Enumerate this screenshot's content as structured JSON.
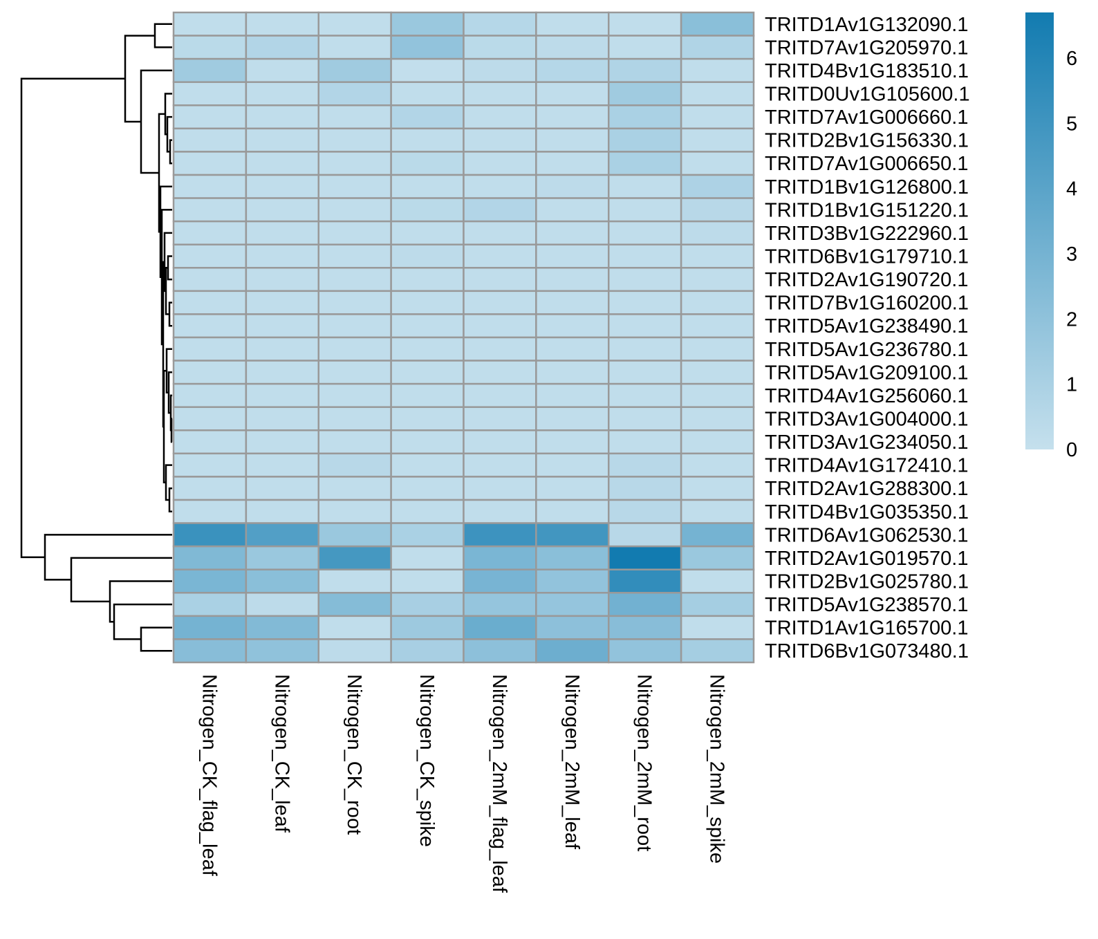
{
  "chart_data": {
    "type": "heatmap",
    "title": "",
    "xlabel": "",
    "ylabel": "",
    "columns": [
      "Nitrogen_CK_flag_leaf",
      "Nitrogen_CK_leaf",
      "Nitrogen_CK_root",
      "Nitrogen_CK_spike",
      "Nitrogen_2mM_flag_leaf",
      "Nitrogen_2mM_leaf",
      "Nitrogen_2mM_root",
      "Nitrogen_2mM_spike"
    ],
    "rows": [
      "TRITD1Av1G132090.1",
      "TRITD7Av1G205970.1",
      "TRITD4Bv1G183510.1",
      "TRITD0Uv1G105600.1",
      "TRITD7Av1G006660.1",
      "TRITD2Bv1G156330.1",
      "TRITD7Av1G006650.1",
      "TRITD1Bv1G126800.1",
      "TRITD1Bv1G151220.1",
      "TRITD3Bv1G222960.1",
      "TRITD6Bv1G179710.1",
      "TRITD2Av1G190720.1",
      "TRITD7Bv1G160200.1",
      "TRITD5Av1G238490.1",
      "TRITD5Av1G236780.1",
      "TRITD5Av1G209100.1",
      "TRITD4Av1G256060.1",
      "TRITD3Av1G004000.1",
      "TRITD3Av1G234050.1",
      "TRITD4Av1G172410.1",
      "TRITD2Av1G288300.1",
      "TRITD4Bv1G035350.1",
      "TRITD6Av1G062530.1",
      "TRITD2Av1G019570.1",
      "TRITD2Bv1G025780.1",
      "TRITD5Av1G238570.1",
      "TRITD1Av1G165700.1",
      "TRITD6Bv1G073480.1"
    ],
    "values": [
      [
        0.2,
        0.2,
        0.2,
        1.6,
        0.6,
        0.2,
        0.2,
        2.2
      ],
      [
        0.4,
        0.7,
        0.2,
        1.9,
        0.4,
        0.3,
        0.2,
        0.8
      ],
      [
        1.4,
        0.2,
        1.4,
        0.1,
        0.3,
        0.6,
        0.8,
        0.2
      ],
      [
        0.2,
        0.2,
        0.7,
        0.2,
        0.2,
        0.2,
        1.4,
        0.2
      ],
      [
        0.2,
        0.2,
        0.2,
        0.7,
        0.2,
        0.2,
        1.0,
        0.2
      ],
      [
        0.2,
        0.2,
        0.2,
        0.2,
        0.2,
        0.2,
        1.0,
        0.2
      ],
      [
        0.2,
        0.2,
        0.2,
        0.4,
        0.2,
        0.2,
        1.0,
        0.2
      ],
      [
        0.2,
        0.2,
        0.2,
        0.2,
        0.2,
        0.3,
        0.2,
        0.9
      ],
      [
        0.2,
        0.2,
        0.2,
        0.4,
        0.7,
        0.2,
        0.2,
        0.5
      ],
      [
        0.2,
        0.2,
        0.2,
        0.2,
        0.2,
        0.2,
        0.2,
        0.3
      ],
      [
        0.2,
        0.2,
        0.2,
        0.3,
        0.2,
        0.2,
        0.2,
        0.2
      ],
      [
        0.2,
        0.2,
        0.2,
        0.2,
        0.2,
        0.2,
        0.2,
        0.2
      ],
      [
        0.2,
        0.2,
        0.2,
        0.2,
        0.2,
        0.2,
        0.2,
        0.2
      ],
      [
        0.2,
        0.2,
        0.2,
        0.2,
        0.2,
        0.2,
        0.2,
        0.2
      ],
      [
        0.2,
        0.2,
        0.2,
        0.2,
        0.2,
        0.2,
        0.2,
        0.2
      ],
      [
        0.2,
        0.2,
        0.2,
        0.2,
        0.2,
        0.2,
        0.2,
        0.2
      ],
      [
        0.2,
        0.2,
        0.2,
        0.2,
        0.2,
        0.2,
        0.2,
        0.2
      ],
      [
        0.2,
        0.2,
        0.2,
        0.2,
        0.2,
        0.2,
        0.2,
        0.2
      ],
      [
        0.2,
        0.2,
        0.2,
        0.2,
        0.2,
        0.2,
        0.2,
        0.2
      ],
      [
        0.2,
        0.2,
        0.5,
        0.2,
        0.2,
        0.2,
        0.5,
        0.2
      ],
      [
        0.2,
        0.2,
        0.2,
        0.2,
        0.2,
        0.2,
        0.5,
        0.2
      ],
      [
        0.2,
        0.2,
        0.2,
        0.2,
        0.2,
        0.2,
        0.5,
        0.2
      ],
      [
        5.2,
        4.3,
        1.6,
        1.0,
        5.1,
        4.9,
        0.5,
        3.0
      ],
      [
        2.6,
        1.6,
        4.8,
        0.2,
        2.8,
        2.2,
        6.7,
        1.6
      ],
      [
        2.8,
        2.2,
        0.2,
        0.2,
        2.9,
        1.9,
        5.5,
        0.2
      ],
      [
        1.0,
        0.3,
        2.4,
        1.1,
        1.8,
        1.8,
        3.1,
        1.2
      ],
      [
        3.0,
        2.5,
        0.2,
        1.5,
        3.4,
        2.1,
        2.3,
        0.2
      ],
      [
        2.3,
        2.0,
        0.3,
        1.1,
        2.1,
        3.3,
        1.9,
        1.2
      ]
    ],
    "vmin": 0,
    "vmax": 6.7,
    "colorscale": [
      "#c5e0ed",
      "#127bb0"
    ],
    "cell_border_color": "#999999",
    "legend": {
      "position": "right",
      "ticks": [
        0,
        1,
        2,
        3,
        4,
        5,
        6
      ],
      "tick_labels": [
        "0",
        "1",
        "2",
        "3",
        "4",
        "5",
        "6"
      ]
    },
    "row_dendrogram": "left",
    "row_order_note": ""
  }
}
